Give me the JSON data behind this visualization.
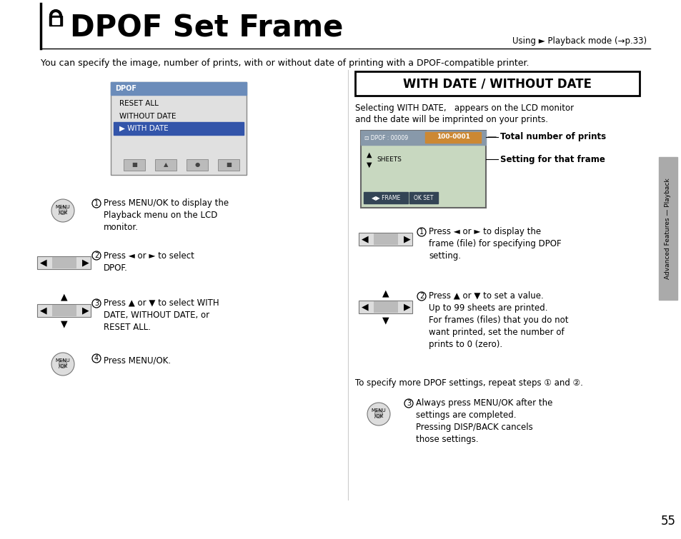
{
  "bg_color": "#ffffff",
  "title": "DPOF Set Frame",
  "subtitle_right": "Using ► Playback mode (→p.33)",
  "intro_text": "You can specify the image, number of prints, with or without date of printing with a DPOF-compatible printer.",
  "section_box_title": "WITH DATE / WITHOUT DATE",
  "select_text_line1": "Selecting WITH DATE,   appears on the LCD monitor",
  "select_text_line2": "and the date will be imprinted on your prints.",
  "left_step1": "Press MENU/OK to display the\nPlayback menu on the LCD\nmonitor.",
  "left_step2": "Press ◄ or ► to select\nDPOF.",
  "left_step3": "Press ▲ or ▼ to select WITH\nDATE, WITHOUT DATE, or\nRESET ALL.",
  "left_step4": "Press MENU/OK.",
  "right_step1": "Press ◄ or ► to display the\nframe (file) for specifying DPOF\nsetting.",
  "right_step2": "Press ▲ or ▼ to set a value.\nUp to 99 sheets are printed.\nFor frames (files) that you do not\nwant printed, set the number of\nprints to 0 (zero).",
  "right_step3": "To specify more DPOF settings, repeat steps ① and ②.",
  "right_step4": "Always press MENU/OK after the\nsettings are completed.\nPressing DISP/BACK cancels\nthose settings.",
  "total_prints_label": "Total number of prints",
  "setting_frame_label": "Setting for that frame",
  "side_tab_text": "Advanced Features — Playback",
  "page_num": "55",
  "gray_tab_color": "#aaaaaa",
  "menu_header_color": "#6b8cba",
  "menu_highlight_color": "#3355aa",
  "lcd_bg_color": "#c8d8c0",
  "lcd_bar_color": "#8899aa",
  "lcd_highlight_color": "#cc8833",
  "lcd_bottom_color": "#334455"
}
